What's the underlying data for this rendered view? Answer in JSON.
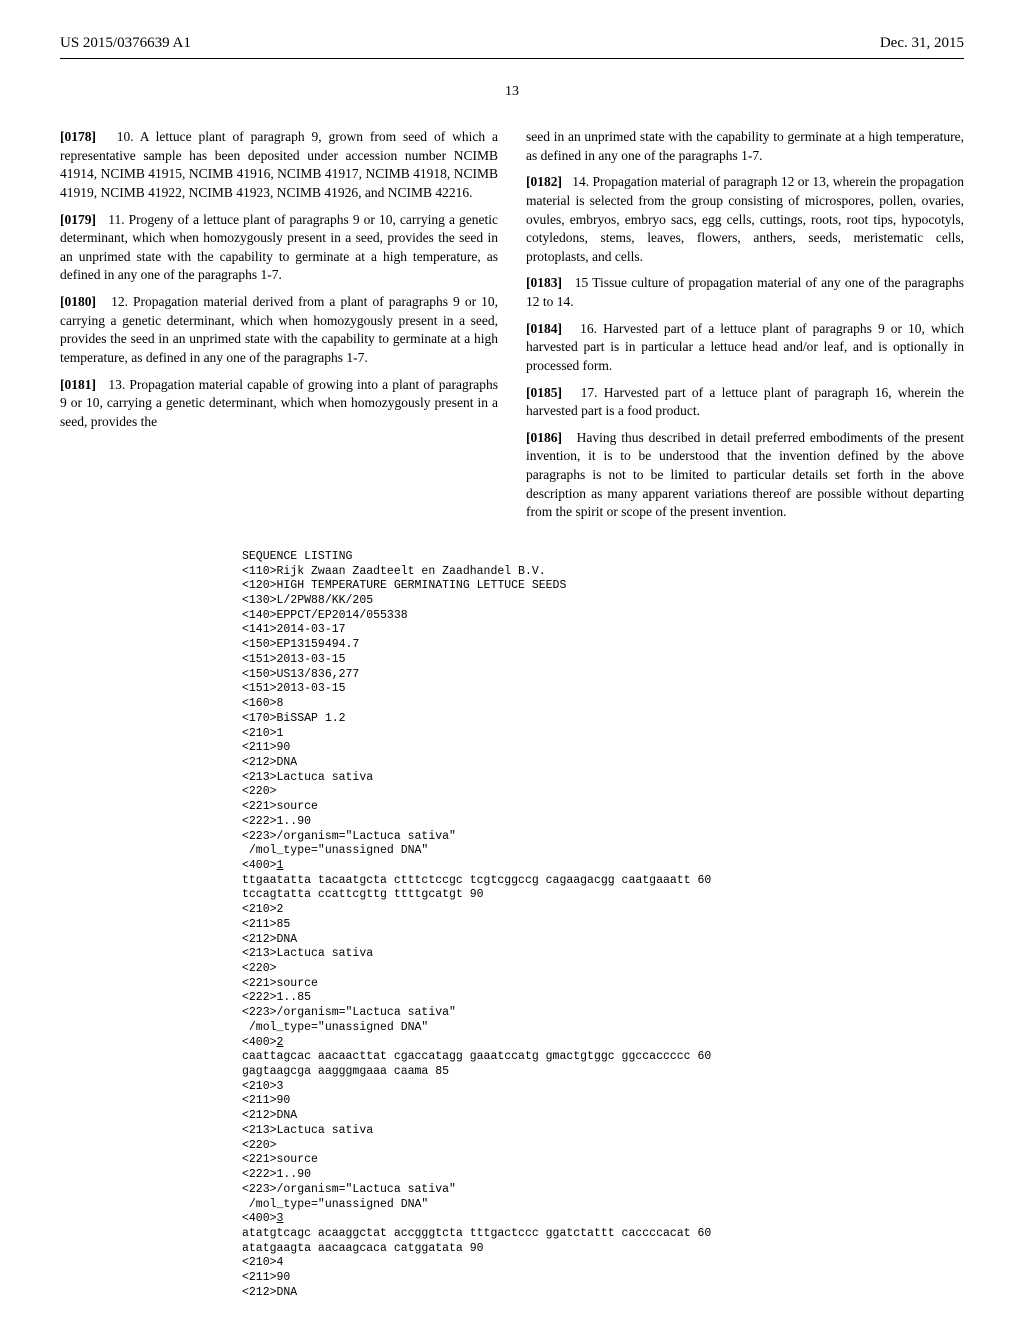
{
  "header": {
    "left": "US 2015/0376639 A1",
    "right": "Dec. 31, 2015"
  },
  "page_number": "13",
  "left_column": {
    "paras": [
      {
        "num": "[0178]",
        "text": "10. A lettuce plant of paragraph 9, grown from seed of which a representative sample has been deposited under accession number NCIMB 41914, NCIMB 41915, NCIMB 41916, NCIMB 41917, NCIMB 41918, NCIMB 41919, NCIMB 41922, NCIMB 41923, NCIMB 41926, and NCIMB 42216."
      },
      {
        "num": "[0179]",
        "text": "11. Progeny of a lettuce plant of paragraphs 9 or 10, carrying a genetic determinant, which when homozygously present in a seed, provides the seed in an unprimed state with the capability to germinate at a high temperature, as defined in any one of the paragraphs 1-7."
      },
      {
        "num": "[0180]",
        "text": "12. Propagation material derived from a plant of paragraphs 9 or 10, carrying a genetic determinant, which when homozygously present in a seed, provides the seed in an unprimed state with the capability to germinate at a high temperature, as defined in any one of the paragraphs 1-7."
      },
      {
        "num": "[0181]",
        "text": "13. Propagation material capable of growing into a plant of paragraphs 9 or 10, carrying a genetic determinant, which when homozygously present in a seed, provides the "
      }
    ]
  },
  "right_column": {
    "intro": "seed in an unprimed state with the capability to germinate at a high temperature, as defined in any one of the paragraphs 1-7.",
    "paras": [
      {
        "num": "[0182]",
        "text": "14. Propagation material of paragraph 12 or 13, wherein the propagation material is selected from the group consisting of microspores, pollen, ovaries, ovules, embryos, embryo sacs, egg cells, cuttings, roots, root tips, hypocotyls, cotyledons, stems, leaves, flowers, anthers, seeds, meristematic cells, protoplasts, and cells."
      },
      {
        "num": "[0183]",
        "text": "15 Tissue culture of propagation material of any one of the paragraphs 12 to 14."
      },
      {
        "num": "[0184]",
        "text": "16. Harvested part of a lettuce plant of paragraphs 9 or 10, which harvested part is in particular a lettuce head and/or leaf, and is optionally in processed form."
      },
      {
        "num": "[0185]",
        "text": "17. Harvested part of a lettuce plant of paragraph 16, wherein the harvested part is a food product."
      },
      {
        "num": "[0186]",
        "text": "Having thus described in detail preferred embodiments of the present invention, it is to be understood that the invention defined by the above paragraphs is not to be limited to particular details set forth in the above description as many apparent variations thereof are possible without departing from the spirit or scope of the present invention."
      }
    ]
  },
  "sequence": {
    "lines": [
      "SEQUENCE LISTING",
      "<110>Rijk Zwaan Zaadteelt en Zaadhandel B.V.",
      "<120>HIGH TEMPERATURE GERMINATING LETTUCE SEEDS",
      "<130>L/2PW88/KK/205",
      "<140>EPPCT/EP2014/055338",
      "<141>2014-03-17",
      "<150>EP13159494.7",
      "<151>2013-03-15",
      "<150>US13/836,277",
      "<151>2013-03-15",
      "<160>8",
      "<170>BiSSAP 1.2",
      "<210>1",
      "<211>90",
      "<212>DNA",
      "<213>Lactuca sativa",
      "<220>",
      "<221>source",
      "<222>1..90",
      "<223>/organism=\"Lactuca sativa\"",
      " /mol_type=\"unassigned DNA\"",
      {
        "text": "<400>1",
        "u": true
      },
      "ttgaatatta tacaatgcta ctttctccgc tcgtcggccg cagaagacgg caatgaaatt 60",
      "tccagtatta ccattcgttg ttttgcatgt 90",
      "<210>2",
      "<211>85",
      "<212>DNA",
      "<213>Lactuca sativa",
      "<220>",
      "<221>source",
      "<222>1..85",
      "<223>/organism=\"Lactuca sativa\"",
      " /mol_type=\"unassigned DNA\"",
      {
        "text": "<400>2",
        "u": true
      },
      "caattagcac aacaacttat cgaccatagg gaaatccatg gmactgtggc ggccaccccc 60",
      "gagtaagcga aagggmgaaa caama 85",
      "<210>3",
      "<211>90",
      "<212>DNA",
      "<213>Lactuca sativa",
      "<220>",
      "<221>source",
      "<222>1..90",
      "<223>/organism=\"Lactuca sativa\"",
      " /mol_type=\"unassigned DNA\"",
      {
        "text": "<400>3",
        "u": true
      },
      "atatgtcagc acaaggctat accgggtcta tttgactccc ggatctattt caccccacat 60",
      "atatgaagta aacaagcaca catggatata 90",
      "<210>4",
      "<211>90",
      "<212>DNA"
    ]
  }
}
